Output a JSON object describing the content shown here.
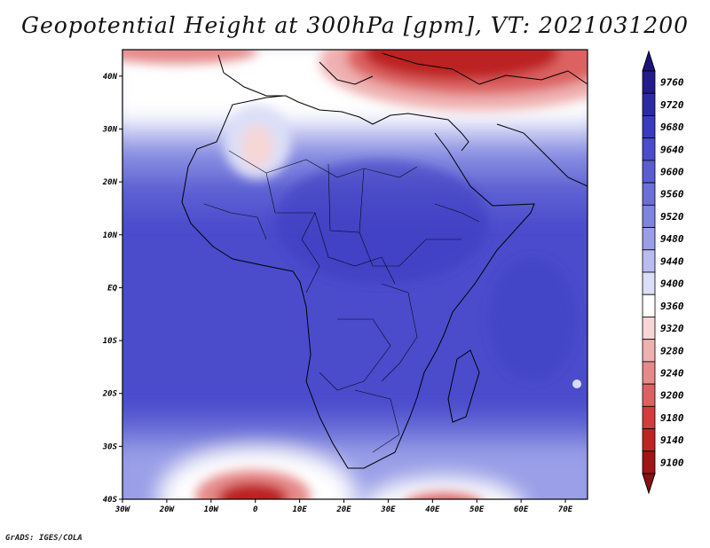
{
  "title": "Geopotential Height at 300hPa [gpm], VT: 2021031200",
  "footer": "GrADS: IGES/COLA",
  "map": {
    "lat_labels": [
      "40N",
      "30N",
      "20N",
      "10N",
      "EQ",
      "10S",
      "20S",
      "30S",
      "40S"
    ],
    "lon_labels": [
      "30W",
      "20W",
      "10W",
      "0",
      "10E",
      "20E",
      "30E",
      "40E",
      "50E",
      "60E",
      "70E"
    ],
    "region": {
      "lon_range": [
        -30,
        75
      ],
      "lat_range": [
        -40,
        45
      ]
    }
  },
  "colorbar": {
    "levels": [
      9760,
      9720,
      9680,
      9640,
      9600,
      9560,
      9520,
      9480,
      9440,
      9400,
      9360,
      9320,
      9280,
      9240,
      9200,
      9180,
      9140,
      9100
    ],
    "colors": [
      "#241a8c",
      "#2d2aa6",
      "#3a3bbf",
      "#4a4ccc",
      "#5a5dd2",
      "#6b6fd8",
      "#7f84df",
      "#9a9fe7",
      "#b8bcef",
      "#dcdff7",
      "#ffffff",
      "#f7d6d6",
      "#efb0b0",
      "#e68a8a",
      "#dc6262",
      "#d13d3d",
      "#bd2424",
      "#9e1616"
    ],
    "top_color": "#1e137a",
    "bottom_color": "#8a0f0f"
  },
  "colors": {
    "land_outline": "#000000",
    "frame": "#000000"
  }
}
